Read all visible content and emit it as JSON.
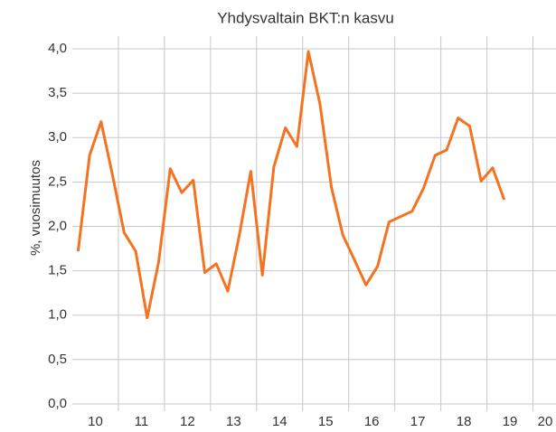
{
  "chart_data": {
    "type": "line",
    "title": "Yhdysvaltain BKT:n kasvu",
    "y_label": "%, vuosimuutos",
    "series": [
      {
        "name": "BKT",
        "color": "#f47321",
        "x": [
          10.125,
          10.375,
          10.625,
          10.875,
          11.125,
          11.375,
          11.625,
          11.875,
          12.125,
          12.375,
          12.625,
          12.875,
          13.125,
          13.375,
          13.625,
          13.875,
          14.125,
          14.375,
          14.625,
          14.875,
          15.125,
          15.375,
          15.625,
          15.875,
          16.125,
          16.375,
          16.625,
          16.875,
          17.125,
          17.375,
          17.625,
          17.875,
          18.125,
          18.375,
          18.625,
          18.875,
          19.125,
          19.375
        ],
        "values": [
          1.72,
          2.8,
          3.18,
          2.57,
          1.93,
          1.72,
          0.97,
          1.6,
          2.65,
          2.38,
          2.52,
          1.48,
          1.58,
          1.27,
          1.9,
          2.62,
          1.45,
          2.67,
          3.11,
          2.9,
          3.97,
          3.38,
          2.44,
          1.9,
          1.62,
          1.34,
          1.55,
          2.05,
          2.11,
          2.17,
          2.43,
          2.8,
          2.86,
          3.22,
          3.13,
          2.51,
          2.66,
          2.3
        ]
      }
    ],
    "xlim": [
      10,
      20.5
    ],
    "xticks": [
      {
        "value": 10.5,
        "label": "10"
      },
      {
        "value": 11.5,
        "label": "11"
      },
      {
        "value": 12.5,
        "label": "12"
      },
      {
        "value": 13.5,
        "label": "13"
      },
      {
        "value": 14.5,
        "label": "14"
      },
      {
        "value": 15.5,
        "label": "15"
      },
      {
        "value": 16.5,
        "label": "16"
      },
      {
        "value": 17.5,
        "label": "17"
      },
      {
        "value": 18.5,
        "label": "18"
      },
      {
        "value": 19.5,
        "label": "19"
      },
      {
        "value": 20.5,
        "label": "20"
      }
    ],
    "xgrid": [
      11,
      12,
      13,
      14,
      15,
      16,
      17,
      18,
      19,
      20
    ],
    "ylim": [
      0,
      4
    ],
    "yticks": [
      {
        "value": 0,
        "label": "0,0"
      },
      {
        "value": 0.5,
        "label": "0,5"
      },
      {
        "value": 1,
        "label": "1,0"
      },
      {
        "value": 1.5,
        "label": "1,5"
      },
      {
        "value": 2,
        "label": "2,0"
      },
      {
        "value": 2.5,
        "label": "2,5"
      },
      {
        "value": 3,
        "label": "3,0"
      },
      {
        "value": 3.5,
        "label": "3,5"
      },
      {
        "value": 4,
        "label": "4,0"
      }
    ],
    "grid": true
  }
}
